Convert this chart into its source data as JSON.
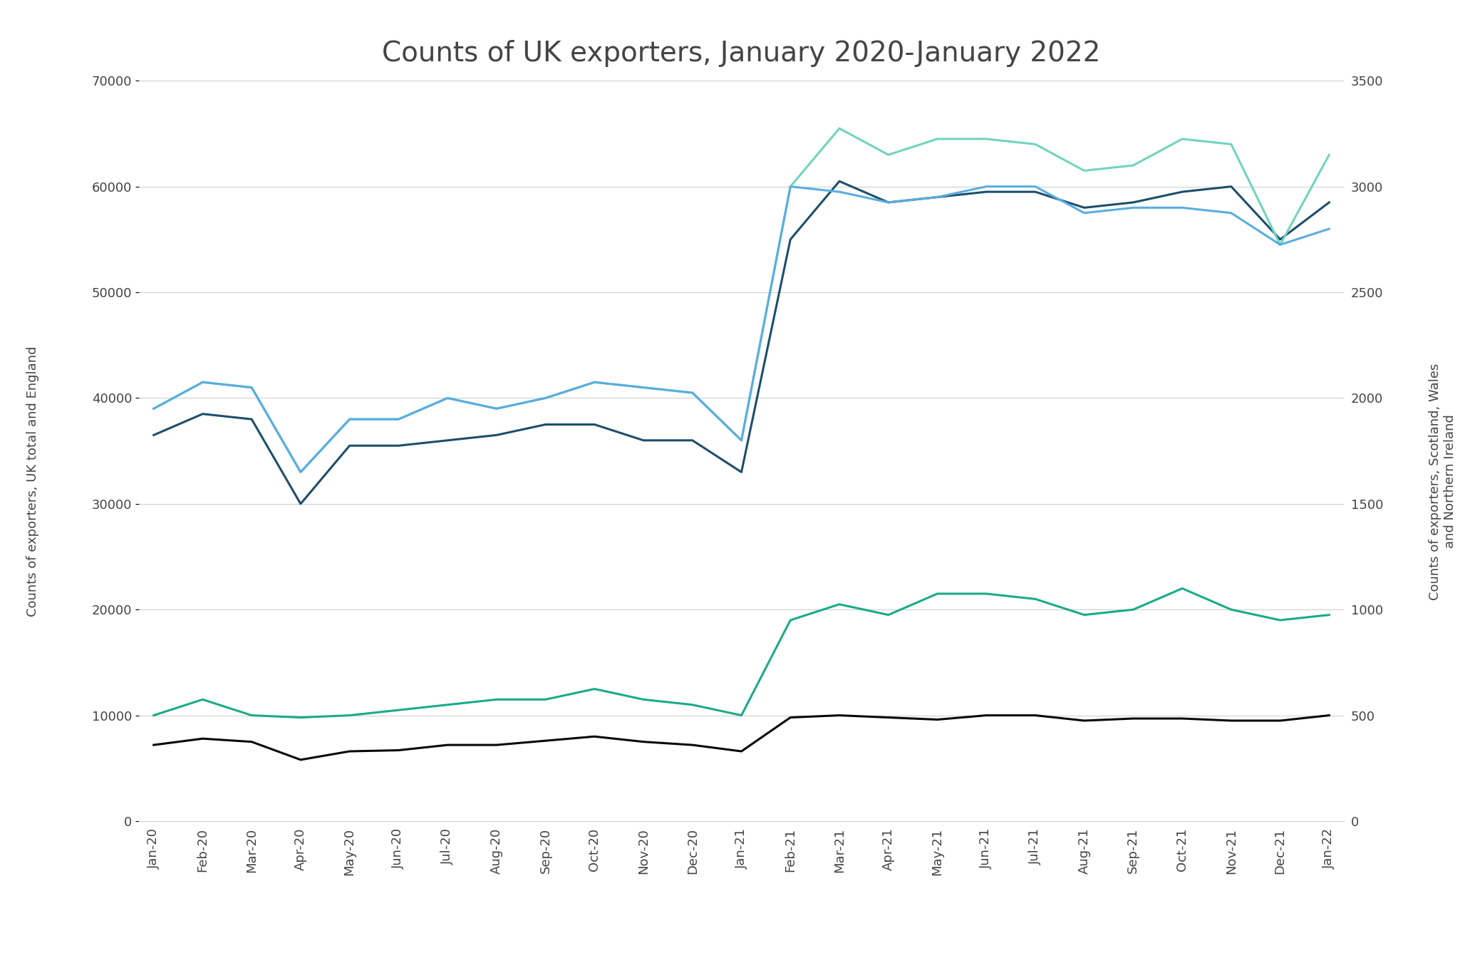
{
  "title": "Counts of UK exporters, January 2020-January 2022",
  "ylabel_left_plain": "Counts of exporters, ",
  "ylabel_left_colored": "UK total",
  "ylabel_left_mid": " and ",
  "ylabel_left_end": "England",
  "ylabel_right_plain": "Counts of exporters, ",
  "ylabel_right_colored": "Scotland",
  "ylabel_right_mid": ", Wales\nand ",
  "ylabel_right_end": "Northern Ireland",
  "x_labels": [
    "Jan-20",
    "Feb-20",
    "Mar-20",
    "Apr-20",
    "May-20",
    "Jun-20",
    "Jul-20",
    "Aug-20",
    "Sep-20",
    "Oct-20",
    "Nov-20",
    "Dec-20",
    "Jan-21",
    "Feb-21",
    "Mar-21",
    "Apr-21",
    "May-21",
    "Jun-21",
    "Jul-21",
    "Aug-21",
    "Sep-21",
    "Oct-21",
    "Nov-21",
    "Dec-21",
    "Jan-22"
  ],
  "england": [
    36500,
    38500,
    38000,
    30000,
    35500,
    35500,
    36000,
    36500,
    37500,
    37500,
    36000,
    36000,
    33000,
    55000,
    60500,
    58500,
    59000,
    59500,
    59500,
    58000,
    58500,
    59500,
    60000,
    55000,
    58500
  ],
  "total": [
    39000,
    41500,
    41000,
    33000,
    38000,
    38000,
    40000,
    39000,
    40000,
    41500,
    41000,
    40500,
    36000,
    60000,
    65500,
    63000,
    64500,
    64500,
    64000,
    61500,
    62000,
    64500,
    64000,
    54500,
    63000
  ],
  "northern_ireland": [
    360,
    390,
    375,
    290,
    330,
    335,
    360,
    360,
    380,
    400,
    375,
    360,
    330,
    490,
    500,
    490,
    480,
    500,
    500,
    475,
    485,
    485,
    475,
    475,
    500
  ],
  "scotland": [
    1950,
    2075,
    2050,
    1650,
    1900,
    1900,
    2000,
    1950,
    2000,
    2075,
    2050,
    2025,
    1800,
    3000,
    2975,
    2925,
    2950,
    3000,
    3000,
    2875,
    2900,
    2900,
    2875,
    2725,
    2800
  ],
  "wales": [
    500,
    575,
    500,
    490,
    500,
    525,
    550,
    575,
    575,
    625,
    575,
    550,
    500,
    950,
    1025,
    975,
    1075,
    1075,
    1050,
    975,
    1000,
    1100,
    1000,
    950,
    975
  ],
  "england_color": "#1d4e6b",
  "total_color": "#70d4c0",
  "ni_color": "#080808",
  "scotland_color": "#5aade0",
  "wales_color": "#1aab8a",
  "left_ylim": [
    0,
    70000
  ],
  "right_ylim": [
    0,
    3500
  ],
  "left_yticks": [
    0,
    10000,
    20000,
    30000,
    40000,
    50000,
    60000,
    70000
  ],
  "right_yticks": [
    0,
    500,
    1000,
    1500,
    2000,
    2500,
    3000,
    3500
  ],
  "background_color": "#ffffff",
  "title_fontsize": 28,
  "axis_label_fontsize": 13,
  "tick_fontsize": 13,
  "legend_fontsize": 14,
  "line_width": 2.2,
  "grid_color": "#d0d0d0",
  "text_color": "#444444",
  "teal_color": "#70d4c0",
  "blue_color": "#5aade0",
  "dark_teal_color": "#1aab8a"
}
